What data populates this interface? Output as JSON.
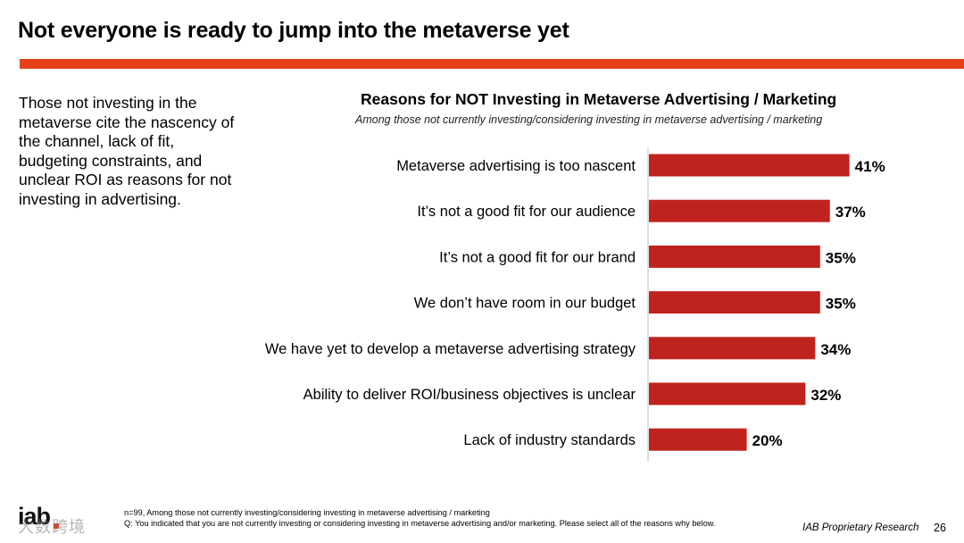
{
  "slide": {
    "title": "Not everyone is ready to jump into the metaverse yet",
    "summary": "Those not investing in the metaverse cite the nascency of the channel, lack of fit, budgeting constraints, and unclear ROI as reasons for not investing in advertising.",
    "footnote_1": "n=99, Among those not currently investing/considering investing in metaverse advertising / marketing",
    "footnote_2": "Q: You indicated that you are not currently investing or considering investing in metaverse advertising and/or marketing. Please select all of the reasons why below.",
    "source": "IAB Proprietary Research",
    "page_number": "26",
    "logo_text": "iab",
    "watermark_text": "大数跨境",
    "accent_color": "#e4411a"
  },
  "chart_data": {
    "type": "bar",
    "orientation": "horizontal",
    "title": "Reasons for NOT Investing in Metaverse Advertising / Marketing",
    "subtitle": "Among those not currently investing/considering investing in metaverse advertising / marketing",
    "categories": [
      "Metaverse advertising is too nascent",
      "It’s not a good fit for our audience",
      "It’s not a good fit for our brand",
      "We don’t have room in our budget",
      "We have yet to develop a metaverse advertising strategy",
      "Ability to deliver ROI/business objectives is unclear",
      "Lack of industry standards"
    ],
    "values": [
      41,
      37,
      35,
      35,
      34,
      32,
      20
    ],
    "value_labels": [
      "41%",
      "37%",
      "35%",
      "35%",
      "34%",
      "32%",
      "20%"
    ],
    "unit": "%",
    "xlim": [
      0,
      100
    ],
    "bar_color": "#c0231e",
    "grid": false,
    "legend": "none"
  }
}
